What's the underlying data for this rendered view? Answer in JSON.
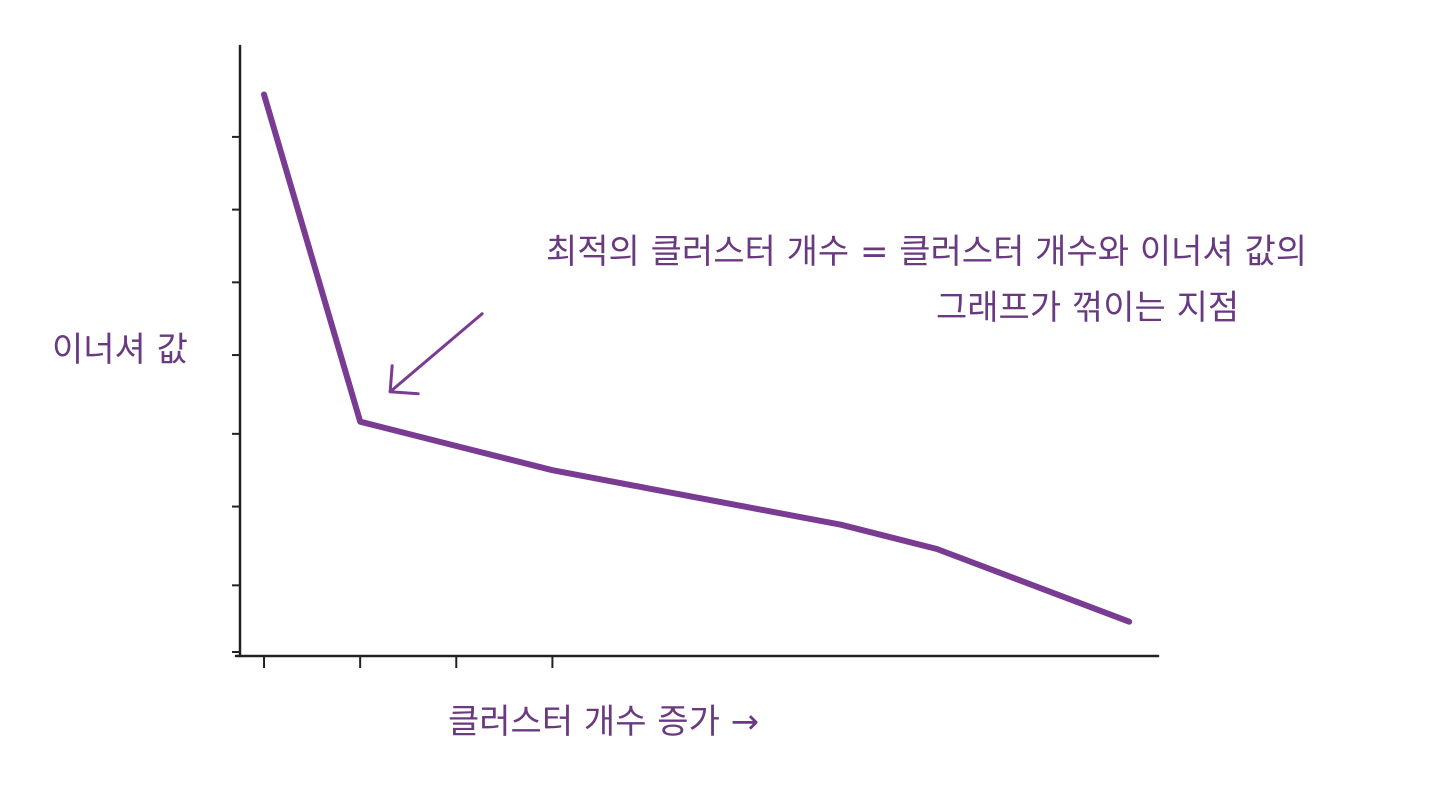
{
  "chart_data": {
    "type": "line",
    "title": "",
    "xlabel": "클러스터 개수 증가 →",
    "ylabel": "이너셔 값",
    "annotation": {
      "line1": "최적의 클러스터 개수 = 클러스터 개수와 이너셔 값의",
      "line2": "그래프가 꺾이는 지점"
    },
    "series": [
      {
        "x": [
          1,
          3,
          5,
          7,
          9,
          11,
          13,
          15,
          17,
          19
        ],
        "values": [
          92,
          38,
          34,
          30,
          27,
          24,
          21,
          17,
          11,
          5
        ]
      }
    ],
    "xlim": [
      0.5,
      19.6
    ],
    "ylim": [
      0,
      100
    ],
    "x_ticks": [
      1,
      3,
      5,
      7
    ],
    "y_ticks": [
      0,
      11,
      24,
      36,
      49,
      61,
      73,
      85
    ],
    "grid": false,
    "colors": {
      "line": "#7a3c93",
      "text": "#6a3a80",
      "axis": "#222222"
    }
  }
}
